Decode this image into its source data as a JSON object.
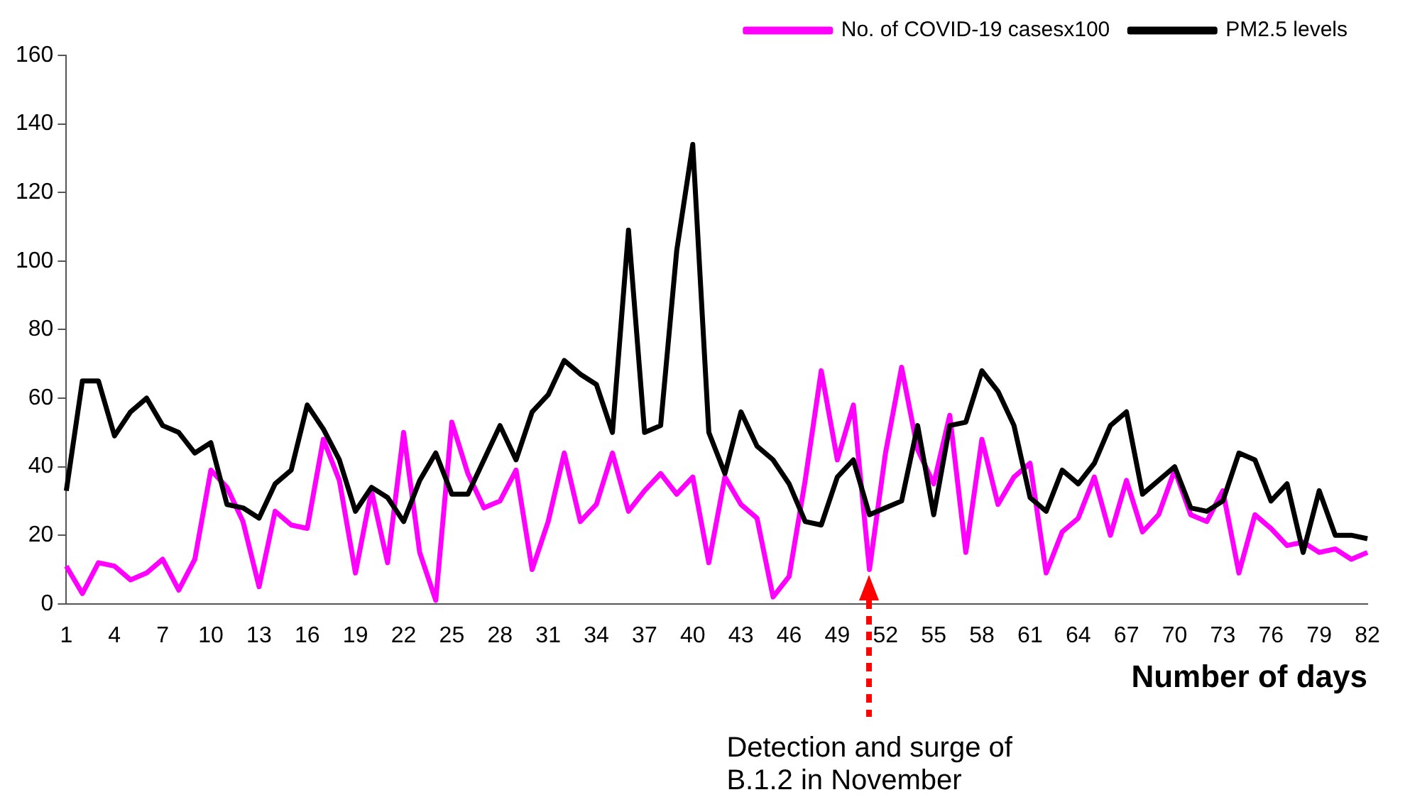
{
  "chart_data": {
    "type": "line",
    "xlabel": "Number of days",
    "categories": [
      "1",
      null,
      null,
      "4",
      null,
      null,
      "7",
      null,
      null,
      "10",
      null,
      null,
      "13",
      null,
      null,
      "16",
      null,
      null,
      "19",
      null,
      null,
      "22",
      null,
      null,
      "25",
      null,
      null,
      "28",
      null,
      null,
      "31",
      null,
      null,
      "34",
      null,
      null,
      "37",
      null,
      null,
      "40",
      null,
      null,
      "43",
      null,
      null,
      "46",
      null,
      null,
      "49",
      null,
      null,
      "52",
      null,
      null,
      "55",
      null,
      null,
      "58",
      null,
      null,
      "61",
      null,
      null,
      "64",
      null,
      null,
      "67",
      null,
      null,
      "70",
      null,
      null,
      "73",
      null,
      null,
      "76",
      null,
      null,
      "79",
      null,
      null,
      "82"
    ],
    "series": [
      {
        "name": "No. of COVID-19 casesx100",
        "color": "#ff00ff",
        "values": [
          11,
          3,
          12,
          11,
          7,
          9,
          13,
          4,
          13,
          39,
          34,
          24,
          5,
          27,
          23,
          22,
          48,
          36,
          9,
          33,
          12,
          50,
          15,
          1,
          53,
          38,
          28,
          30,
          39,
          10,
          24,
          44,
          24,
          29,
          44,
          27,
          33,
          38,
          32,
          37,
          12,
          37,
          29,
          25,
          2,
          8,
          36,
          68,
          42,
          58,
          10,
          44,
          69,
          45,
          35,
          55,
          15,
          48,
          29,
          37,
          41,
          9,
          21,
          25,
          37,
          20,
          36,
          21,
          26,
          39,
          26,
          24,
          33,
          9,
          26,
          22,
          17,
          18,
          15,
          16,
          13,
          15
        ]
      },
      {
        "name": "PM2.5 levels",
        "color": "#000000",
        "values": [
          33,
          65,
          65,
          49,
          56,
          60,
          52,
          50,
          44,
          47,
          29,
          28,
          25,
          35,
          39,
          58,
          51,
          42,
          27,
          34,
          31,
          24,
          36,
          44,
          32,
          32,
          42,
          52,
          42,
          56,
          61,
          71,
          67,
          64,
          50,
          109,
          50,
          52,
          103,
          134,
          50,
          38,
          56,
          46,
          42,
          35,
          24,
          23,
          37,
          42,
          26,
          28,
          30,
          52,
          26,
          52,
          53,
          68,
          62,
          52,
          31,
          27,
          39,
          35,
          41,
          52,
          56,
          32,
          36,
          40,
          28,
          27,
          30,
          44,
          42,
          30,
          35,
          15,
          33,
          20,
          20,
          19
        ]
      }
    ],
    "ylim": [
      0,
      160
    ],
    "yticks": [
      0,
      20,
      40,
      60,
      80,
      100,
      120,
      140,
      160
    ],
    "grid": false,
    "legend": "top right",
    "marker": "none",
    "line_style": "solid",
    "annotations": [
      "Detection and surge of B.1.2 in November"
    ]
  }
}
